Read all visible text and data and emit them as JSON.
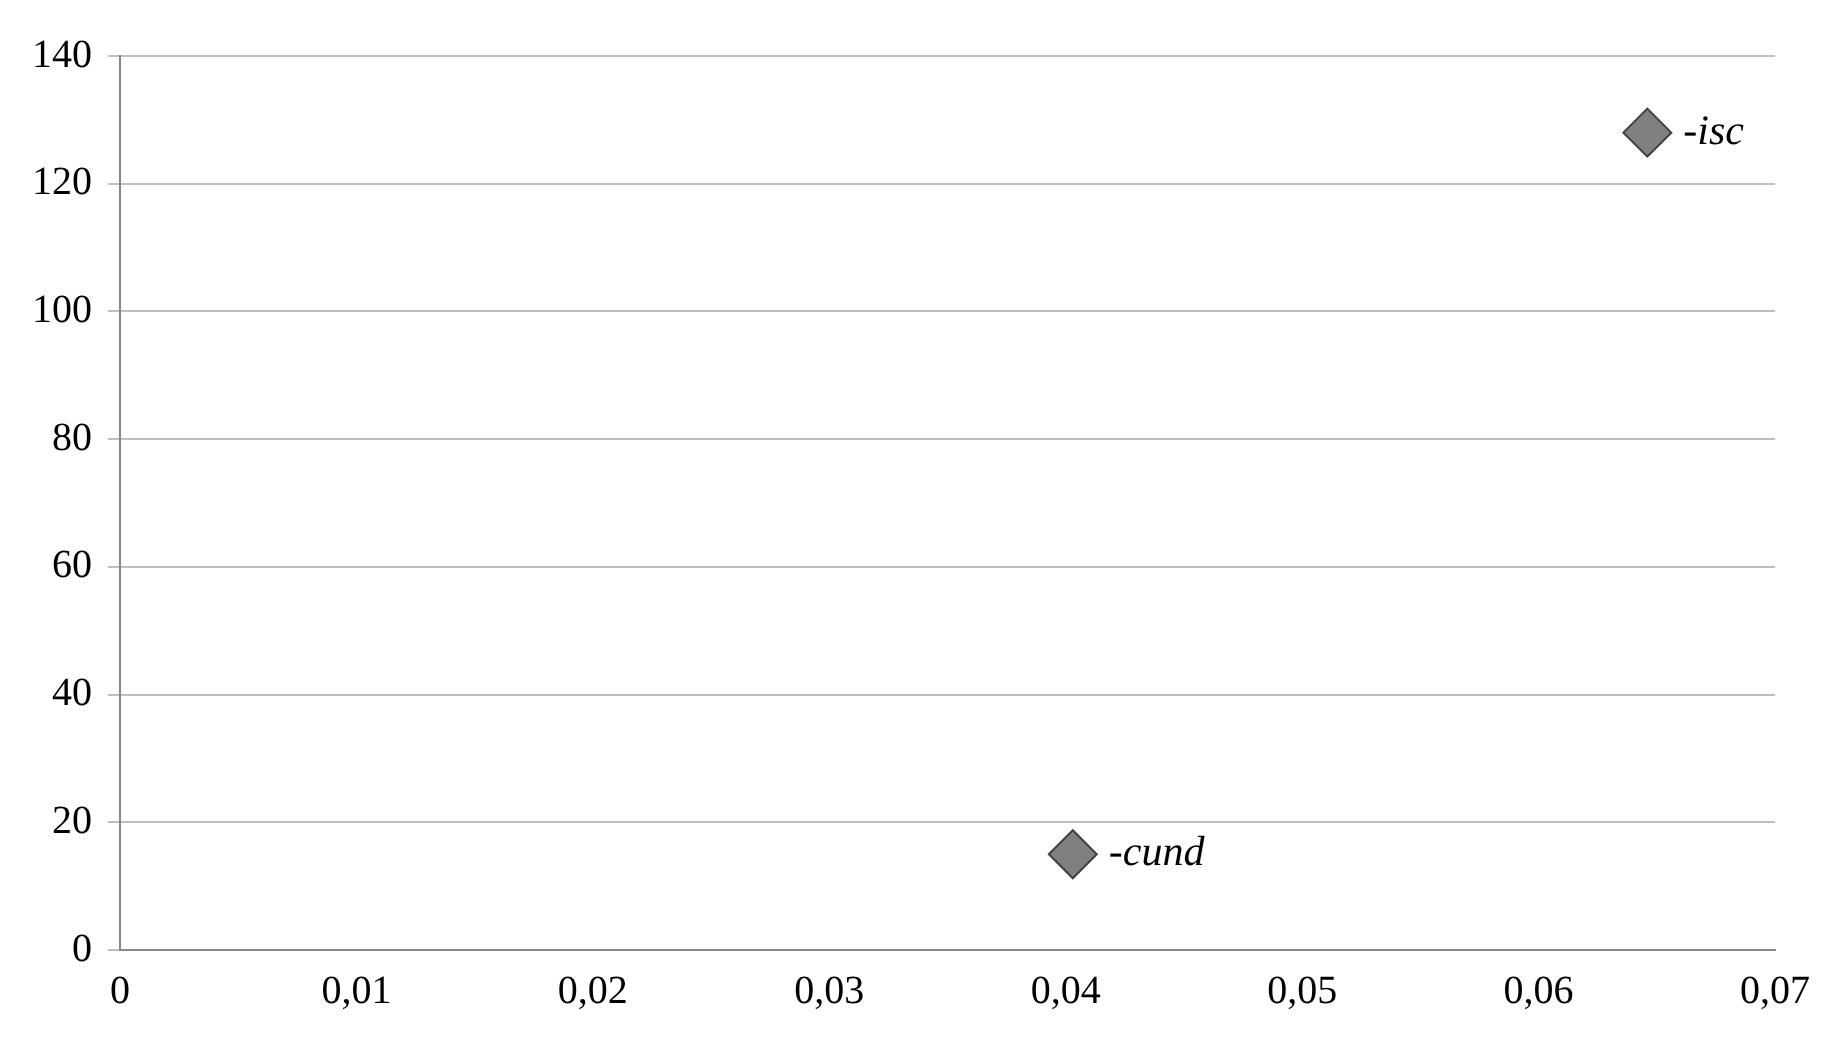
{
  "chart_data": {
    "type": "scatter",
    "x": [
      0.0403,
      0.0646
    ],
    "values": [
      15,
      128
    ],
    "color": "#808080",
    "marker": "diamond",
    "grid": "y",
    "xlim": [
      0,
      0.07
    ],
    "xticks": [
      0,
      {
        "value": 0.01,
        "label": "0,01"
      },
      {
        "value": 0.02,
        "label": "0,02"
      },
      {
        "value": 0.03,
        "label": "0,03"
      },
      {
        "value": 0.04,
        "label": "0,04"
      },
      {
        "value": 0.05,
        "label": "0,05"
      },
      {
        "value": 0.06,
        "label": "0,06"
      },
      {
        "value": 0.07,
        "label": "0,07"
      }
    ],
    "ylim": [
      0,
      140
    ],
    "yticks": [
      0,
      20,
      40,
      60,
      80,
      100,
      120,
      140
    ],
    "annotations": [
      {
        "text": "-cund",
        "x": 0.0403,
        "y": 15
      },
      {
        "text": "-isc",
        "x": 0.0646,
        "y": 128
      }
    ]
  }
}
